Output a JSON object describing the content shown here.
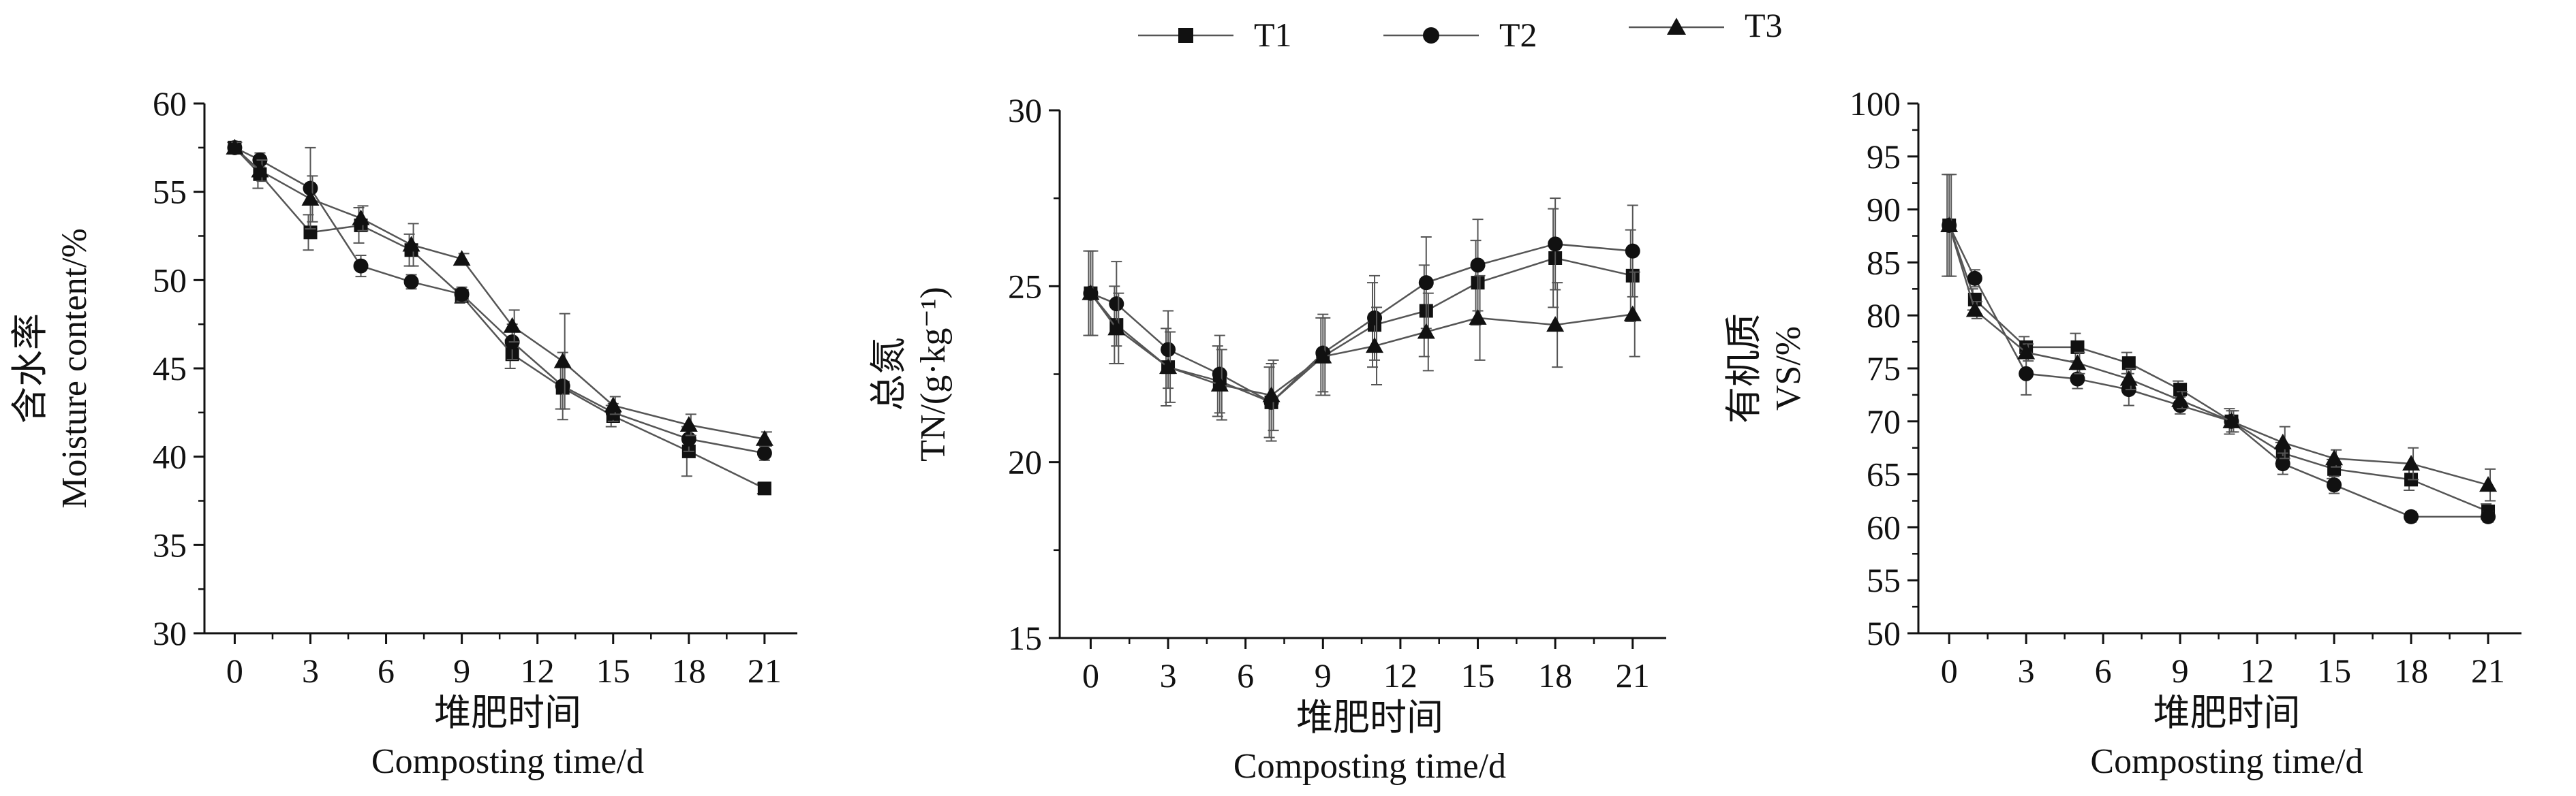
{
  "legend": [
    {
      "name": "T1",
      "marker": "square"
    },
    {
      "name": "T2",
      "marker": "circle"
    },
    {
      "name": "T3",
      "marker": "triangle"
    }
  ],
  "colors": {
    "line": "#555555",
    "marker": "#111111",
    "axis": "#111111"
  },
  "chart_data": [
    {
      "type": "line",
      "title": "",
      "xlabel_cn": "堆肥时间",
      "xlabel": "Composting time/d",
      "ylabel_cn": "含水率",
      "ylabel": "Moisture content/%",
      "xticks": [
        0,
        3,
        6,
        9,
        12,
        15,
        18,
        21
      ],
      "yticks": [
        30,
        35,
        40,
        45,
        50,
        55,
        60
      ],
      "xlim": [
        -1.2,
        22.3
      ],
      "ylim": [
        30,
        60
      ],
      "x": [
        0,
        1,
        3,
        5,
        7,
        9,
        11,
        13,
        15,
        18,
        21
      ],
      "series": [
        {
          "name": "T1",
          "marker": "square",
          "values": [
            57.5,
            56.0,
            52.7,
            53.1,
            51.7,
            49.1,
            45.8,
            43.9,
            42.3,
            40.3,
            38.2
          ],
          "errors": [
            0.3,
            0.8,
            1.0,
            1.0,
            0.9,
            0.4,
            0.8,
            1.2,
            0.6,
            1.4,
            0.3
          ]
        },
        {
          "name": "T2",
          "marker": "circle",
          "values": [
            57.5,
            56.8,
            55.2,
            50.8,
            49.9,
            49.2,
            46.5,
            44.0,
            42.5,
            41.0,
            40.2
          ],
          "errors": [
            0.3,
            0.4,
            2.3,
            0.6,
            0.4,
            0.4,
            1.0,
            1.9,
            0.5,
            0.7,
            0.4
          ]
        },
        {
          "name": "T3",
          "marker": "triangle",
          "values": [
            57.5,
            56.2,
            54.6,
            53.5,
            52.0,
            51.2,
            47.4,
            45.4,
            42.9,
            41.8,
            41.0
          ],
          "errors": [
            0.3,
            0.6,
            1.3,
            0.7,
            1.2,
            0.3,
            0.9,
            2.7,
            0.5,
            0.6,
            0.4
          ]
        }
      ]
    },
    {
      "type": "line",
      "title": "",
      "xlabel_cn": "堆肥时间",
      "xlabel": "Composting time/d",
      "ylabel_cn": "总氮",
      "ylabel": "TN/(g·kg⁻¹)",
      "xticks": [
        0,
        3,
        6,
        9,
        12,
        15,
        18,
        21
      ],
      "yticks": [
        15,
        20,
        25,
        30
      ],
      "xlim": [
        -1.2,
        22.3
      ],
      "ylim": [
        15,
        30
      ],
      "x": [
        0,
        1,
        3,
        5,
        7,
        9,
        11,
        13,
        15,
        18,
        21
      ],
      "series": [
        {
          "name": "T1",
          "marker": "square",
          "values": [
            24.8,
            23.9,
            22.7,
            22.3,
            21.7,
            23.0,
            23.9,
            24.3,
            25.1,
            25.8,
            25.3
          ],
          "errors": [
            1.2,
            1.1,
            1.1,
            1.0,
            1.0,
            1.1,
            1.2,
            1.3,
            1.2,
            1.4,
            1.3
          ]
        },
        {
          "name": "T2",
          "marker": "circle",
          "values": [
            24.8,
            24.5,
            23.2,
            22.5,
            21.7,
            23.1,
            24.1,
            25.1,
            25.6,
            26.2,
            26.0
          ],
          "errors": [
            1.2,
            1.2,
            1.1,
            1.1,
            1.1,
            1.1,
            1.2,
            1.3,
            1.3,
            1.3,
            1.3
          ]
        },
        {
          "name": "T3",
          "marker": "triangle",
          "values": [
            24.8,
            23.8,
            22.7,
            22.2,
            21.9,
            23.0,
            23.3,
            23.7,
            24.1,
            23.9,
            24.2
          ],
          "errors": [
            1.2,
            1.0,
            1.0,
            1.0,
            1.0,
            1.1,
            1.1,
            1.1,
            1.2,
            1.2,
            1.2
          ]
        }
      ]
    },
    {
      "type": "line",
      "title": "",
      "xlabel_cn": "堆肥时间",
      "xlabel": "Composting time/d",
      "ylabel_cn": "有机质",
      "ylabel": "VS/%",
      "xticks": [
        0,
        3,
        6,
        9,
        12,
        15,
        18,
        21
      ],
      "yticks": [
        50,
        55,
        60,
        65,
        70,
        75,
        80,
        85,
        90,
        95,
        100
      ],
      "xlim": [
        -1.2,
        22.3
      ],
      "ylim": [
        50,
        100
      ],
      "x": [
        0,
        1,
        3,
        5,
        7,
        9,
        11,
        13,
        15,
        18,
        21
      ],
      "series": [
        {
          "name": "T1",
          "marker": "square",
          "values": [
            88.5,
            81.5,
            77.0,
            77.0,
            75.5,
            73.0,
            70.0,
            67.0,
            65.5,
            64.5,
            61.5
          ],
          "errors": [
            4.8,
            1.0,
            1.0,
            1.3,
            1.0,
            0.8,
            1.2,
            1.0,
            0.9,
            1.0,
            0.7
          ]
        },
        {
          "name": "T2",
          "marker": "circle",
          "values": [
            88.5,
            83.5,
            74.5,
            74.0,
            73.0,
            71.5,
            70.0,
            66.0,
            64.0,
            61.0,
            61.0
          ],
          "errors": [
            4.8,
            0.8,
            2.0,
            0.9,
            1.5,
            0.8,
            1.0,
            1.0,
            0.8,
            0.5,
            0.5
          ]
        },
        {
          "name": "T3",
          "marker": "triangle",
          "values": [
            88.5,
            80.5,
            76.5,
            75.5,
            74.0,
            72.0,
            70.0,
            68.0,
            66.5,
            66.0,
            64.0
          ],
          "errors": [
            4.8,
            0.8,
            0.8,
            1.0,
            1.0,
            0.8,
            1.0,
            1.5,
            0.8,
            1.5,
            1.5
          ]
        }
      ]
    }
  ]
}
